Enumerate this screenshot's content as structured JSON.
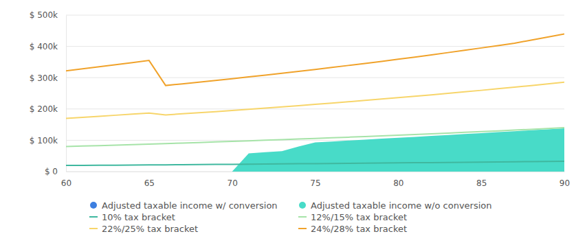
{
  "chart_data": {
    "type": "line",
    "x": [
      60,
      61,
      62,
      63,
      64,
      65,
      66,
      67,
      68,
      69,
      70,
      71,
      72,
      73,
      74,
      75,
      76,
      77,
      78,
      79,
      80,
      81,
      82,
      83,
      84,
      85,
      86,
      87,
      88,
      89,
      90
    ],
    "xlim": [
      60,
      90
    ],
    "xticks": [
      60,
      65,
      70,
      75,
      80,
      85,
      90
    ],
    "ylim": [
      0,
      500000
    ],
    "yticks": [
      {
        "value": 0,
        "label": "$ 0"
      },
      {
        "value": 100000,
        "label": "$ 100k"
      },
      {
        "value": 200000,
        "label": "$ 200k"
      },
      {
        "value": 300000,
        "label": "$ 300k"
      },
      {
        "value": 400000,
        "label": "$ 400k"
      },
      {
        "value": 500000,
        "label": "$ 500k"
      }
    ],
    "grid": true,
    "legend": "bottom",
    "series": [
      {
        "name": "Adjusted taxable income w/ conversion",
        "type": "area",
        "color": "#3d7fe0",
        "values": [
          0,
          0,
          0,
          0,
          0,
          0,
          0,
          0,
          0,
          0,
          0,
          0,
          0,
          0,
          0,
          0,
          0,
          0,
          0,
          0,
          0,
          0,
          0,
          0,
          0,
          0,
          0,
          0,
          0,
          0,
          0
        ]
      },
      {
        "name": "Adjusted taxable income w/o conversion",
        "type": "area",
        "color": "#48dbc8",
        "values": [
          0,
          0,
          0,
          0,
          0,
          0,
          0,
          0,
          0,
          0,
          0,
          58000,
          62000,
          65000,
          80000,
          93000,
          96000,
          99000,
          102000,
          105000,
          108000,
          111000,
          114000,
          117000,
          120000,
          123000,
          126000,
          129000,
          132000,
          135000,
          138000
        ]
      },
      {
        "name": "10% tax bracket",
        "type": "line",
        "color": "#3fb89f",
        "values": [
          19500,
          19850,
          20200,
          20550,
          20900,
          21300,
          21650,
          22050,
          22450,
          22850,
          23250,
          23650,
          24100,
          24500,
          24950,
          25400,
          25850,
          26300,
          26800,
          27250,
          27750,
          28250,
          28750,
          29250,
          29800,
          30300,
          30850,
          31400,
          32000,
          32550,
          33150
        ]
      },
      {
        "name": "12%/15% tax bracket",
        "type": "line",
        "color": "#a6e3a8",
        "values": [
          80000,
          81500,
          83000,
          84600,
          86200,
          87800,
          89500,
          91200,
          92900,
          94600,
          96400,
          98200,
          100100,
          102000,
          103900,
          105900,
          107900,
          109900,
          112000,
          114100,
          116300,
          118500,
          120700,
          123000,
          125300,
          127700,
          130100,
          132600,
          135100,
          137600,
          140200
        ]
      },
      {
        "name": "22%/25% tax bracket",
        "type": "line",
        "color": "#f7d56a",
        "values": [
          170000,
          173300,
          176700,
          180100,
          183600,
          187000,
          181000,
          184500,
          188000,
          191600,
          195200,
          199000,
          202800,
          206700,
          210700,
          214700,
          218800,
          223000,
          227300,
          231700,
          236100,
          240600,
          245200,
          249900,
          254700,
          259600,
          264600,
          269700,
          274800,
          280100,
          285500
        ]
      },
      {
        "name": "24%/28% tax bracket",
        "type": "line",
        "color": "#f0a22a",
        "values": [
          322000,
          328500,
          335000,
          341600,
          348300,
          355000,
          275000,
          280300,
          285700,
          291200,
          296800,
          302500,
          308300,
          314200,
          320200,
          326400,
          332700,
          339100,
          345600,
          352200,
          359000,
          365900,
          373000,
          380200,
          387500,
          395000,
          402600,
          410300,
          420000,
          430000,
          440000
        ]
      }
    ]
  }
}
